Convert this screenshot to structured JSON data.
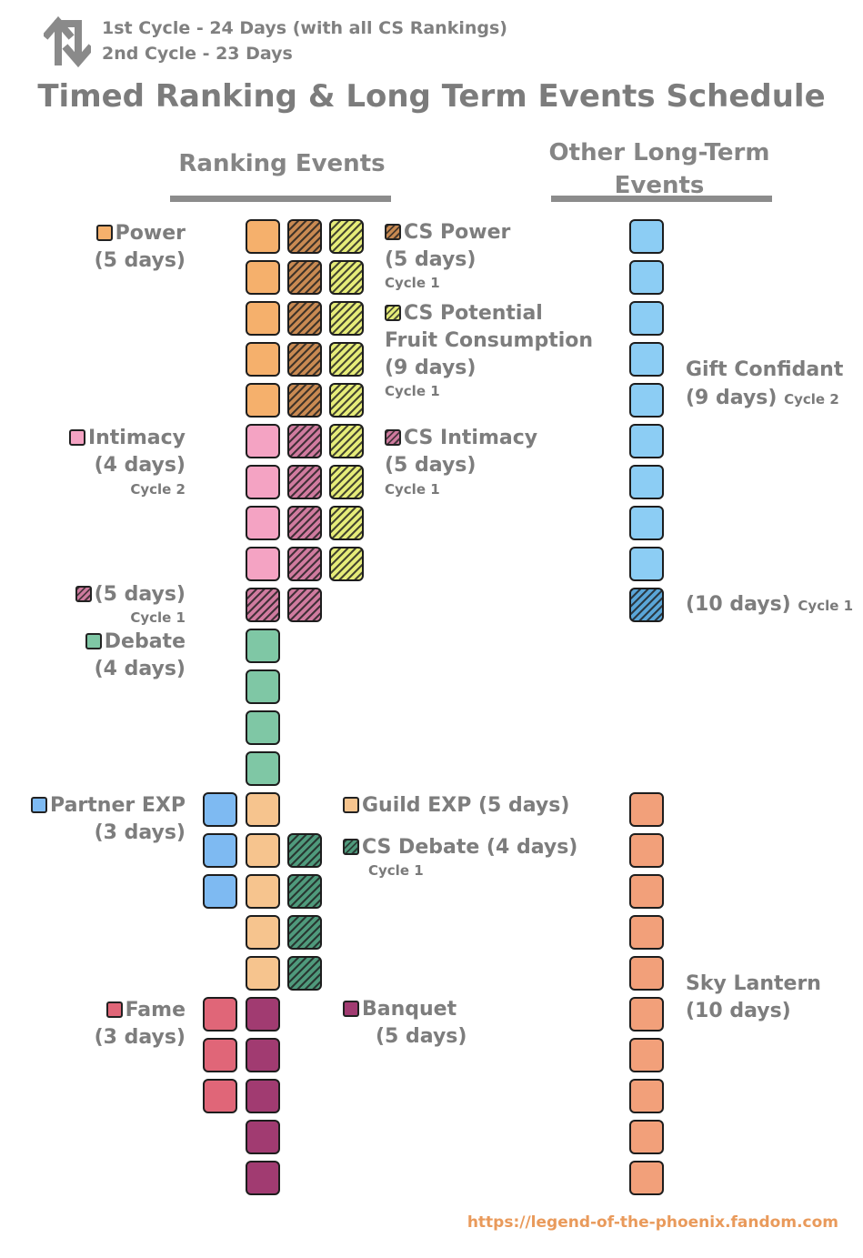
{
  "header": {
    "cycle1": "1st Cycle - 24 Days (with all CS Rankings)",
    "cycle2": "2nd Cycle - 23 Days"
  },
  "title": "Timed Ranking & Long Term Events Schedule",
  "ranking_section": {
    "title": "Ranking Events"
  },
  "other_section": {
    "title_line1": "Other Long-Term",
    "title_line2": "Events"
  },
  "labels": {
    "power": {
      "name": "Power",
      "days": "(5 days)"
    },
    "cs_power": {
      "name": "CS Power",
      "days": "(5 days)",
      "cycle": "Cycle 1"
    },
    "cs_potential": {
      "name": "CS Potential",
      "name2": "Fruit Consumption",
      "days": "(9 days)",
      "cycle": "Cycle 1"
    },
    "intimacy": {
      "name": "Intimacy",
      "days": "(4 days)",
      "cycle": "Cycle 2"
    },
    "cs_intimacy": {
      "name": "CS Intimacy",
      "days": "(5 days)",
      "cycle": "Cycle 1"
    },
    "intimacy_c1": {
      "days": "(5 days)",
      "cycle": "Cycle 1"
    },
    "debate": {
      "name": "Debate",
      "days": "(4 days)"
    },
    "partner_exp": {
      "name": "Partner EXP",
      "days": "(3 days)"
    },
    "guild_exp": {
      "name": "Guild EXP (5 days)"
    },
    "cs_debate": {
      "name": "CS Debate (4 days)",
      "cycle": "Cycle 1"
    },
    "fame": {
      "name": "Fame",
      "days": "(3 days)"
    },
    "banquet": {
      "name": "Banquet",
      "days": "(5 days)"
    },
    "gift_confidant": {
      "name": "Gift Confidant",
      "days": "(9 days)",
      "cycle": "Cycle 2"
    },
    "gift_c1": {
      "days": "(10 days)",
      "cycle": "Cycle 1"
    },
    "sky_lantern": {
      "name": "Sky Lantern",
      "days": "(10 days)"
    }
  },
  "footer": {
    "url": "https://legend-of-the-phoenix.fandom.com"
  },
  "colors": {
    "power": "#f5b06c",
    "cs_power": "#c98a52",
    "cs_potential": "#e6ec79",
    "intimacy": "#f4a3c3",
    "cs_intimacy": "#d07b9f",
    "debate": "#7fc7a5",
    "cs_debate": "#4f9a7c",
    "partner_exp": "#7ebaf2",
    "guild_exp": "#f6c48e",
    "fame": "#e06678",
    "banquet": "#a13b71",
    "gift_confidant": "#8ccdf4",
    "gift_c1": "#5aa6d8",
    "sky_lantern": "#f2a07a"
  },
  "icons": {
    "cycle": "repeat-arrows-icon"
  }
}
